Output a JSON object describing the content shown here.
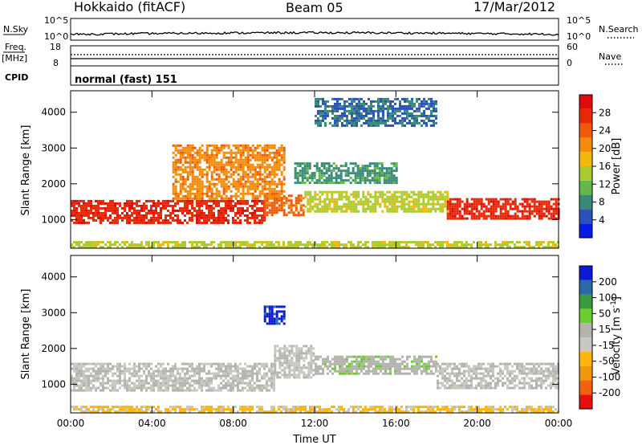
{
  "header": {
    "station": "Hokkaido (fitACF)",
    "beam": "Beam 05",
    "date": "17/Mar/2012"
  },
  "noise_panel": {
    "left_label": "N.Sky",
    "right_label": "N.Search",
    "left_ticks": [
      "10^5",
      "10^0"
    ],
    "right_ticks": [
      "10^5",
      "10^0"
    ]
  },
  "freq_panel": {
    "left_label": "Freq.",
    "left_unit": "[MHz]",
    "left_ticks": [
      "18",
      "8"
    ],
    "right_label": "Nave",
    "right_ticks": [
      "60",
      "0"
    ]
  },
  "cpid_panel": {
    "label": "CPID",
    "text": "normal (fast) 151"
  },
  "colors": {
    "power": [
      "#0a1ae6",
      "#2a52b8",
      "#3a8a78",
      "#62b84a",
      "#a8cc30",
      "#f2b80c",
      "#f28c0a",
      "#ee5a08",
      "#e62a08",
      "#e00a0a"
    ],
    "velocity": [
      "#e60f0f",
      "#f0620e",
      "#f2960e",
      "#ffb60c",
      "#c8c8c0",
      "#b4b4ae",
      "#6ccc30",
      "#3a9a40",
      "#2a6aa8",
      "#0a1ad0"
    ]
  },
  "chart_data": [
    {
      "type": "heatmap",
      "quantity": "power",
      "ylabel": "Slant Range [km]",
      "yticks": [
        1000,
        2000,
        3000,
        4000
      ],
      "ylim": [
        200,
        4600
      ],
      "xlim": [
        0,
        24
      ],
      "colorbar": {
        "label": "Power [dB]",
        "ticks": [
          "28",
          "24",
          "20",
          "16",
          "12",
          "8",
          "4"
        ],
        "range": [
          0,
          30
        ]
      },
      "regions": [
        {
          "t0": 0,
          "t1": 9.5,
          "r0": 900,
          "r1": 1550,
          "level": 26
        },
        {
          "t0": 9.5,
          "t1": 11.5,
          "r0": 1100,
          "r1": 1700,
          "level": 22
        },
        {
          "t0": 11.5,
          "t1": 18.5,
          "r0": 1200,
          "r1": 1800,
          "level": 14
        },
        {
          "t0": 18.5,
          "t1": 24,
          "r0": 1000,
          "r1": 1600,
          "level": 26
        },
        {
          "t0": 5,
          "t1": 10.5,
          "r0": 1600,
          "r1": 3100,
          "level": 20
        },
        {
          "t0": 11,
          "t1": 16,
          "r0": 2000,
          "r1": 2600,
          "level": 8
        },
        {
          "t0": 12,
          "t1": 18,
          "r0": 3600,
          "r1": 4400,
          "level": 6
        },
        {
          "t0": 0,
          "t1": 24,
          "r0": 200,
          "r1": 400,
          "level": 14
        }
      ]
    },
    {
      "type": "heatmap",
      "quantity": "velocity",
      "xlabel": "Time UT",
      "ylabel": "Slant Range [km]",
      "xticks": [
        "00:00",
        "04:00",
        "08:00",
        "12:00",
        "16:00",
        "20:00",
        "00:00"
      ],
      "yticks": [
        1000,
        2000,
        3000,
        4000
      ],
      "ylim": [
        200,
        4600
      ],
      "xlim": [
        0,
        24
      ],
      "colorbar": {
        "label": "Velocity [m s^-1]",
        "ticks": [
          "200",
          "100",
          "50",
          "15",
          "-15",
          "-50",
          "-100",
          "-200"
        ],
        "range": [
          -250,
          250
        ]
      },
      "regions": [
        {
          "t0": 0,
          "t1": 10,
          "r0": 800,
          "r1": 1600,
          "level": 0
        },
        {
          "t0": 10,
          "t1": 12,
          "r0": 1200,
          "r1": 2100,
          "level": 0
        },
        {
          "t0": 12,
          "t1": 18,
          "r0": 1300,
          "r1": 1800,
          "level": 30
        },
        {
          "t0": 18,
          "t1": 24,
          "r0": 900,
          "r1": 1600,
          "level": 0
        },
        {
          "t0": 9.5,
          "t1": 10.5,
          "r0": 2700,
          "r1": 3200,
          "level": 220
        },
        {
          "t0": 0,
          "t1": 24,
          "r0": 200,
          "r1": 400,
          "level": -60
        }
      ]
    }
  ]
}
